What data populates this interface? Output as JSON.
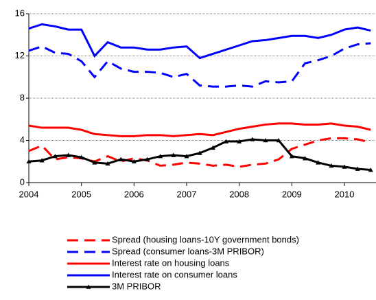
{
  "chart_data": {
    "type": "line",
    "x": [
      2004,
      2004.25,
      2004.5,
      2004.75,
      2005,
      2005.25,
      2005.5,
      2005.75,
      2006,
      2006.25,
      2006.5,
      2006.75,
      2007,
      2007.25,
      2007.5,
      2007.75,
      2008,
      2008.25,
      2008.5,
      2008.75,
      2009,
      2009.25,
      2009.5,
      2009.75,
      2010,
      2010.25,
      2010.5
    ],
    "xlim": [
      2004,
      2010.6
    ],
    "xticks": [
      2004,
      2005,
      2006,
      2007,
      2008,
      2009,
      2010
    ],
    "ylim": [
      0,
      16
    ],
    "yticks": [
      0,
      4,
      8,
      12,
      16
    ],
    "grid": true,
    "series": [
      {
        "name": "Spread (housing loans-10Y government bonds)",
        "color": "#ff0000",
        "dash": true,
        "values": [
          3.0,
          3.5,
          2.2,
          2.4,
          2.3,
          2.0,
          2.5,
          2.0,
          2.3,
          2.1,
          1.6,
          1.7,
          1.9,
          1.8,
          1.6,
          1.7,
          1.5,
          1.7,
          1.8,
          2.2,
          3.2,
          3.6,
          4.0,
          4.2,
          4.2,
          4.1,
          3.8
        ]
      },
      {
        "name": "Spread (consumer loans-3M PRIBOR)",
        "color": "#0000ff",
        "dash": true,
        "values": [
          12.5,
          12.9,
          12.3,
          12.2,
          11.5,
          10.0,
          11.5,
          10.8,
          10.5,
          10.5,
          10.4,
          10.0,
          10.3,
          9.2,
          9.1,
          9.1,
          9.2,
          9.1,
          9.6,
          9.5,
          9.6,
          11.3,
          11.6,
          12.0,
          12.7,
          13.1,
          13.2
        ]
      },
      {
        "name": "Interest rate on housing loans",
        "color": "#ff0000",
        "dash": false,
        "values": [
          5.4,
          5.2,
          5.2,
          5.2,
          5.0,
          4.6,
          4.5,
          4.4,
          4.4,
          4.5,
          4.5,
          4.4,
          4.5,
          4.6,
          4.5,
          4.8,
          5.1,
          5.3,
          5.5,
          5.6,
          5.6,
          5.5,
          5.5,
          5.6,
          5.4,
          5.3,
          5.0
        ]
      },
      {
        "name": "Interest rate on consumer loans",
        "color": "#0000ff",
        "dash": false,
        "values": [
          14.6,
          15.0,
          14.8,
          14.5,
          14.5,
          12.0,
          13.3,
          12.8,
          12.8,
          12.6,
          12.6,
          12.8,
          12.9,
          11.8,
          12.2,
          12.6,
          13.0,
          13.4,
          13.5,
          13.7,
          13.9,
          13.9,
          13.7,
          14.0,
          14.5,
          14.7,
          14.4
        ]
      },
      {
        "name": "3M PRIBOR",
        "color": "#000000",
        "dash": false,
        "marker": "triangle",
        "values": [
          2.0,
          2.1,
          2.5,
          2.6,
          2.4,
          1.9,
          1.8,
          2.2,
          2.0,
          2.2,
          2.5,
          2.6,
          2.5,
          2.8,
          3.3,
          3.9,
          3.9,
          4.1,
          4.0,
          4.0,
          2.5,
          2.3,
          1.9,
          1.6,
          1.5,
          1.3,
          1.2
        ]
      }
    ]
  }
}
